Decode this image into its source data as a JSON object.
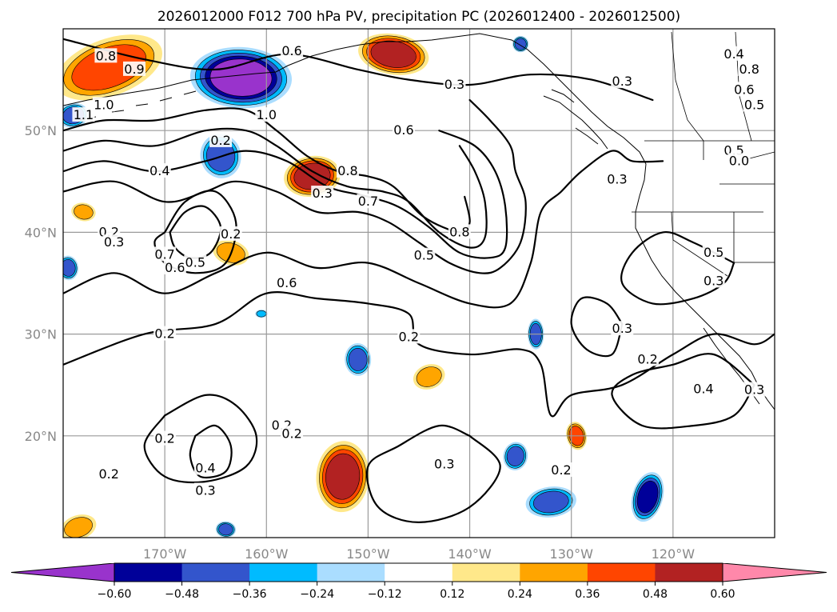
{
  "chart_data": {
    "type": "contour-map",
    "title": "2026012000 F012 700 hPa PV, precipitation PC (2026012400 - 2026012500)",
    "map_extent": {
      "lon_min": -180,
      "lon_max": -110,
      "lat_min": 10,
      "lat_max": 60
    },
    "x_ticks": [
      {
        "lon": -170,
        "label": "170°W"
      },
      {
        "lon": -160,
        "label": "160°W"
      },
      {
        "lon": -150,
        "label": "150°W"
      },
      {
        "lon": -140,
        "label": "140°W"
      },
      {
        "lon": -130,
        "label": "130°W"
      },
      {
        "lon": -120,
        "label": "120°W"
      }
    ],
    "y_ticks": [
      {
        "lat": 50,
        "label": "50°N"
      },
      {
        "lat": 40,
        "label": "40°N"
      },
      {
        "lat": 30,
        "label": "30°N"
      },
      {
        "lat": 20,
        "label": "20°N"
      }
    ],
    "colorbar": {
      "levels": [
        -0.6,
        -0.48,
        -0.36,
        -0.24,
        -0.12,
        0.12,
        0.24,
        0.36,
        0.48,
        0.6
      ],
      "tick_labels": [
        "−0.60",
        "−0.48",
        "−0.36",
        "−0.24",
        "−0.12",
        "0.12",
        "0.24",
        "0.36",
        "0.48",
        "0.60"
      ],
      "colors": [
        "#9933cc",
        "#000099",
        "#3355cc",
        "#00bbff",
        "#aaddff",
        "#ffffff",
        "#ffe88a",
        "#ffa500",
        "#ff4500",
        "#b22222",
        "#ff88aa"
      ],
      "extend": "both"
    },
    "shaded_regions": [
      {
        "lon": -175.5,
        "lat": 56.2,
        "rx": 5.5,
        "ry": 2.8,
        "level": 0.36
      },
      {
        "lon": -162.5,
        "lat": 55.2,
        "rx": 5.0,
        "ry": 3.0,
        "level": -0.6
      },
      {
        "lon": -164.5,
        "lat": 47.5,
        "rx": 2.0,
        "ry": 2.2,
        "level": -0.36
      },
      {
        "lon": -147.5,
        "lat": 57.5,
        "rx": 3.5,
        "ry": 2.0,
        "level": 0.48
      },
      {
        "lon": -155.5,
        "lat": 45.5,
        "rx": 2.8,
        "ry": 2.0,
        "level": 0.48
      },
      {
        "lon": -163.5,
        "lat": 38.0,
        "rx": 1.8,
        "ry": 1.2,
        "level": 0.24
      },
      {
        "lon": -151.0,
        "lat": 27.5,
        "rx": 1.3,
        "ry": 1.6,
        "level": -0.36
      },
      {
        "lon": -144.0,
        "lat": 25.8,
        "rx": 1.6,
        "ry": 1.2,
        "level": 0.24
      },
      {
        "lon": -152.5,
        "lat": 16.0,
        "rx": 2.6,
        "ry": 3.5,
        "level": 0.48
      },
      {
        "lon": -129.5,
        "lat": 20.0,
        "rx": 1.0,
        "ry": 1.4,
        "level": 0.36
      },
      {
        "lon": -135.5,
        "lat": 18.0,
        "rx": 1.2,
        "ry": 1.4,
        "level": -0.36
      },
      {
        "lon": -132.0,
        "lat": 13.5,
        "rx": 2.5,
        "ry": 1.5,
        "level": -0.36
      },
      {
        "lon": -122.5,
        "lat": 14.0,
        "rx": 1.5,
        "ry": 2.5,
        "level": -0.48
      },
      {
        "lon": -133.5,
        "lat": 30.0,
        "rx": 0.8,
        "ry": 1.5,
        "level": -0.36
      },
      {
        "lon": -178.5,
        "lat": 11.0,
        "rx": 1.8,
        "ry": 1.2,
        "level": 0.24
      },
      {
        "lon": -164.0,
        "lat": 10.8,
        "rx": 1.0,
        "ry": 0.8,
        "level": -0.36
      },
      {
        "lon": -179.0,
        "lat": 51.5,
        "rx": 1.5,
        "ry": 1.2,
        "level": -0.36
      },
      {
        "lon": -178.0,
        "lat": 42.0,
        "rx": 1.2,
        "ry": 0.9,
        "level": 0.24
      },
      {
        "lon": -179.5,
        "lat": 36.5,
        "rx": 1.0,
        "ry": 1.2,
        "level": -0.36
      },
      {
        "lon": -135.0,
        "lat": 58.5,
        "rx": 0.8,
        "ry": 0.8,
        "level": -0.36
      },
      {
        "lon": -160.5,
        "lat": 32.0,
        "rx": 0.6,
        "ry": 0.4,
        "level": -0.24
      }
    ],
    "contours": [
      {
        "level": 0.2,
        "points": [
          [
            -180,
            27
          ],
          [
            -172,
            30
          ],
          [
            -165,
            31
          ],
          [
            -160,
            34
          ],
          [
            -155,
            33.5
          ],
          [
            -150,
            33
          ],
          [
            -146,
            32
          ],
          [
            -145,
            29
          ],
          [
            -140,
            28
          ],
          [
            -135,
            28.5
          ],
          [
            -133,
            27
          ],
          [
            -132,
            22
          ],
          [
            -130,
            24
          ],
          [
            -125,
            25
          ],
          [
            -120,
            28
          ],
          [
            -116,
            30
          ],
          [
            -112,
            29
          ],
          [
            -110,
            30
          ]
        ]
      },
      {
        "level": 0.3,
        "points": [
          [
            -180,
            34
          ],
          [
            -175,
            36
          ],
          [
            -170,
            34
          ],
          [
            -165,
            36
          ],
          [
            -160,
            38
          ],
          [
            -155,
            36.5
          ],
          [
            -150,
            37
          ],
          [
            -145,
            35
          ],
          [
            -140,
            33
          ],
          [
            -136,
            33
          ],
          [
            -134,
            37
          ],
          [
            -133,
            42
          ],
          [
            -131,
            44
          ],
          [
            -129,
            46
          ],
          [
            -126,
            48
          ],
          [
            -124,
            47
          ],
          [
            -121,
            47
          ]
        ]
      },
      {
        "level": 0.5,
        "points": [
          [
            -180,
            44
          ],
          [
            -175,
            45
          ],
          [
            -170,
            43
          ],
          [
            -166,
            44
          ],
          [
            -163,
            45
          ],
          [
            -159,
            44
          ],
          [
            -155,
            42
          ],
          [
            -151,
            42
          ],
          [
            -148,
            41
          ],
          [
            -145,
            39
          ],
          [
            -142,
            37
          ],
          [
            -139,
            36
          ],
          [
            -137,
            36.5
          ],
          [
            -135,
            39
          ],
          [
            -134.5,
            43
          ],
          [
            -135.5,
            46
          ],
          [
            -136,
            48.5
          ],
          [
            -138,
            51
          ],
          [
            -140,
            53
          ]
        ]
      },
      {
        "level": 0.6,
        "points": [
          [
            -180,
            46
          ],
          [
            -176,
            47
          ],
          [
            -171,
            46
          ],
          [
            -166,
            47
          ],
          [
            -162,
            48
          ],
          [
            -158,
            47
          ],
          [
            -154,
            44.5
          ],
          [
            -150,
            43.5
          ],
          [
            -147,
            42.5
          ],
          [
            -144,
            40.5
          ],
          [
            -141,
            38
          ],
          [
            -138,
            37.5
          ],
          [
            -136.5,
            38.5
          ],
          [
            -136.5,
            42.5
          ],
          [
            -137.5,
            46
          ],
          [
            -139.5,
            48.5
          ],
          [
            -143,
            50
          ]
        ]
      },
      {
        "level": 0.7,
        "points": [
          [
            -180,
            48
          ],
          [
            -176,
            49
          ],
          [
            -171,
            48.5
          ],
          [
            -166,
            50
          ],
          [
            -162,
            50
          ],
          [
            -159,
            48.5
          ],
          [
            -155.5,
            46
          ],
          [
            -152,
            44.5
          ],
          [
            -148.5,
            44
          ],
          [
            -146,
            43
          ],
          [
            -143,
            40
          ],
          [
            -140,
            38.5
          ],
          [
            -138.5,
            39.5
          ],
          [
            -138.5,
            43
          ],
          [
            -139.5,
            46
          ],
          [
            -141,
            48.5
          ]
        ]
      },
      {
        "level": 0.8,
        "points": [
          [
            -180,
            50
          ],
          [
            -176,
            51
          ],
          [
            -171,
            51
          ],
          [
            -166,
            52
          ],
          [
            -162,
            52
          ],
          [
            -159,
            50
          ],
          [
            -156,
            47.5
          ],
          [
            -153,
            46
          ],
          [
            -150,
            45.5
          ],
          [
            -147.5,
            44.5
          ],
          [
            -144.5,
            41.5
          ],
          [
            -141,
            40
          ],
          [
            -140,
            41
          ],
          [
            -140.5,
            43.5
          ]
        ]
      },
      {
        "level": 0.3,
        "points": [
          [
            -180,
            59
          ],
          [
            -172,
            57
          ],
          [
            -165,
            56
          ],
          [
            -158,
            57.5
          ],
          [
            -151,
            56
          ],
          [
            -146,
            55
          ],
          [
            -140,
            54.5
          ],
          [
            -134,
            55.5
          ],
          [
            -128,
            55
          ],
          [
            -122,
            53
          ]
        ]
      },
      {
        "level": 0.4,
        "points": [
          [
            -170,
            40
          ],
          [
            -168,
            43
          ],
          [
            -165,
            44
          ],
          [
            -163,
            41
          ],
          [
            -164,
            37
          ],
          [
            -167,
            36
          ],
          [
            -170,
            37
          ],
          [
            -171,
            39
          ],
          [
            -170,
            40
          ]
        ]
      },
      {
        "level": 0.5,
        "points": [
          [
            -169.5,
            40
          ],
          [
            -168,
            42
          ],
          [
            -166,
            42.5
          ],
          [
            -164.5,
            40.5
          ],
          [
            -165.5,
            38
          ],
          [
            -167.5,
            37.5
          ],
          [
            -169,
            38.5
          ],
          [
            -169.5,
            40
          ]
        ]
      },
      {
        "level": 0.2,
        "points": [
          [
            -170,
            22
          ],
          [
            -166,
            24
          ],
          [
            -163,
            23
          ],
          [
            -161,
            20
          ],
          [
            -162,
            17
          ],
          [
            -166,
            15.5
          ],
          [
            -170,
            16
          ],
          [
            -172,
            19
          ],
          [
            -170,
            22
          ]
        ]
      },
      {
        "level": 0.3,
        "points": [
          [
            -167,
            20
          ],
          [
            -165,
            21
          ],
          [
            -163.5,
            19
          ],
          [
            -164,
            16.5
          ],
          [
            -166.5,
            16
          ],
          [
            -167.5,
            18
          ],
          [
            -167,
            20
          ]
        ]
      },
      {
        "level": 0.3,
        "points": [
          [
            -140,
            20
          ],
          [
            -143,
            21
          ],
          [
            -147,
            19
          ],
          [
            -150,
            17
          ],
          [
            -149,
            13
          ],
          [
            -145,
            11.5
          ],
          [
            -140,
            13
          ],
          [
            -137,
            17
          ],
          [
            -140,
            20
          ]
        ]
      },
      {
        "level": 0.3,
        "points": [
          [
            -125,
            31
          ],
          [
            -126.5,
            33
          ],
          [
            -129,
            33.5
          ],
          [
            -130,
            31
          ],
          [
            -128.5,
            28.5
          ],
          [
            -126,
            28
          ],
          [
            -125,
            31
          ]
        ]
      },
      {
        "level": 0.4,
        "points": [
          [
            -112,
            25
          ],
          [
            -116,
            28
          ],
          [
            -120,
            27
          ],
          [
            -124,
            26
          ],
          [
            -126,
            24
          ],
          [
            -123,
            21
          ],
          [
            -118,
            21
          ],
          [
            -114,
            22
          ],
          [
            -112,
            25
          ]
        ]
      },
      {
        "level": 0.5,
        "points": [
          [
            -114,
            37
          ],
          [
            -118,
            39
          ],
          [
            -121,
            40
          ],
          [
            -124,
            38
          ],
          [
            -125,
            35
          ],
          [
            -122,
            33
          ],
          [
            -118,
            33.5
          ],
          [
            -115,
            35
          ],
          [
            -114,
            37
          ]
        ]
      }
    ],
    "contour_labels": [
      {
        "lon": -175.8,
        "lat": 57.3,
        "text": "0.8"
      },
      {
        "lon": -176.0,
        "lat": 52.5,
        "text": "1.0"
      },
      {
        "lon": -160.0,
        "lat": 51.5,
        "text": "1.0"
      },
      {
        "lon": -173.0,
        "lat": 56.0,
        "text": "0.9"
      },
      {
        "lon": -178.0,
        "lat": 51.5,
        "text": "1.1"
      },
      {
        "lon": -164.5,
        "lat": 49.0,
        "text": "0.2"
      },
      {
        "lon": -157.5,
        "lat": 57.8,
        "text": "0.6"
      },
      {
        "lon": -146.5,
        "lat": 50.0,
        "text": "0.6"
      },
      {
        "lon": -152.0,
        "lat": 46.0,
        "text": "0.8"
      },
      {
        "lon": -154.5,
        "lat": 43.8,
        "text": "0.3"
      },
      {
        "lon": -150.0,
        "lat": 43.0,
        "text": "0.7"
      },
      {
        "lon": -170.5,
        "lat": 46.0,
        "text": "0.4"
      },
      {
        "lon": -175.5,
        "lat": 40.0,
        "text": "0.2"
      },
      {
        "lon": -175.0,
        "lat": 39.0,
        "text": "0.3"
      },
      {
        "lon": -170.0,
        "lat": 37.8,
        "text": "0.7"
      },
      {
        "lon": -169.0,
        "lat": 36.5,
        "text": "0.6"
      },
      {
        "lon": -167.0,
        "lat": 37.0,
        "text": "0.5"
      },
      {
        "lon": -163.5,
        "lat": 39.8,
        "text": "0.2"
      },
      {
        "lon": -158.0,
        "lat": 35.0,
        "text": "0.6"
      },
      {
        "lon": -144.5,
        "lat": 37.7,
        "text": "0.5"
      },
      {
        "lon": -141.0,
        "lat": 40.0,
        "text": "0.8"
      },
      {
        "lon": -170.0,
        "lat": 30.0,
        "text": "0.2"
      },
      {
        "lon": -146.0,
        "lat": 29.7,
        "text": "0.2"
      },
      {
        "lon": -141.5,
        "lat": 54.5,
        "text": "0.3"
      },
      {
        "lon": -125.0,
        "lat": 54.8,
        "text": "0.3"
      },
      {
        "lon": -125.5,
        "lat": 45.2,
        "text": "0.3"
      },
      {
        "lon": -116.0,
        "lat": 38.0,
        "text": "0.5"
      },
      {
        "lon": -116.0,
        "lat": 35.2,
        "text": "0.3"
      },
      {
        "lon": -125.0,
        "lat": 30.5,
        "text": "0.3"
      },
      {
        "lon": -122.5,
        "lat": 27.5,
        "text": "0.2"
      },
      {
        "lon": -117.0,
        "lat": 24.6,
        "text": "0.4"
      },
      {
        "lon": -112.0,
        "lat": 24.5,
        "text": "0.3"
      },
      {
        "lon": -114.0,
        "lat": 57.5,
        "text": "0.4"
      },
      {
        "lon": -112.5,
        "lat": 56.0,
        "text": "0.8"
      },
      {
        "lon": -113.0,
        "lat": 54.0,
        "text": "0.6"
      },
      {
        "lon": -112.0,
        "lat": 52.5,
        "text": "0.5"
      },
      {
        "lon": -114.0,
        "lat": 48.0,
        "text": "0.5"
      },
      {
        "lon": -113.5,
        "lat": 47.0,
        "text": "0.0"
      },
      {
        "lon": -170.0,
        "lat": 19.7,
        "text": "0.2"
      },
      {
        "lon": -175.5,
        "lat": 16.2,
        "text": "0.2"
      },
      {
        "lon": -166.0,
        "lat": 16.8,
        "text": "0.4"
      },
      {
        "lon": -166.0,
        "lat": 14.6,
        "text": "0.3"
      },
      {
        "lon": -158.5,
        "lat": 21.0,
        "text": "0.2"
      },
      {
        "lon": -157.5,
        "lat": 20.2,
        "text": "0.2"
      },
      {
        "lon": -142.5,
        "lat": 17.2,
        "text": "0.3"
      },
      {
        "lon": -131.0,
        "lat": 16.6,
        "text": "0.2"
      }
    ]
  }
}
